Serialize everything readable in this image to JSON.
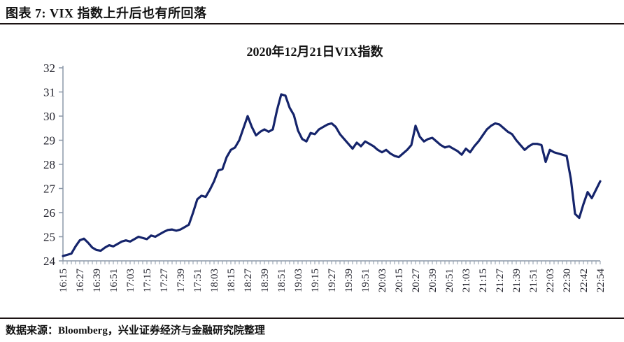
{
  "header": {
    "title": "图表 7: VIX 指数上升后也有所回落"
  },
  "footer": {
    "source": "数据来源：Bloomberg，兴业证券经济与金融研究院整理"
  },
  "chart_data": {
    "type": "line",
    "title": "2020年12月21日VIX指数",
    "xlabel": "",
    "ylabel": "",
    "ylim": [
      24,
      32
    ],
    "y_tick_step": 1,
    "grid": "off",
    "legend": "none",
    "line_color": "#15246B",
    "axis_color": "#8C98A8",
    "tick_label_color": "#22222C",
    "points_per_tick_interval": 4,
    "x_tick_labels": [
      "16:15",
      "16:27",
      "16:39",
      "16:51",
      "17:03",
      "17:15",
      "17:27",
      "17:39",
      "17:51",
      "18:03",
      "18:15",
      "18:27",
      "18:39",
      "18:51",
      "19:03",
      "19:15",
      "19:27",
      "19:39",
      "19:51",
      "20:03",
      "20:15",
      "20:27",
      "20:39",
      "20:51",
      "21:03",
      "21:15",
      "21:27",
      "21:39",
      "21:51",
      "22:03",
      "22:30",
      "22:42",
      "22:54"
    ],
    "values": [
      24.2,
      24.25,
      24.3,
      24.6,
      24.85,
      24.92,
      24.75,
      24.55,
      24.45,
      24.42,
      24.55,
      24.65,
      24.6,
      24.7,
      24.8,
      24.85,
      24.8,
      24.9,
      25.0,
      24.95,
      24.9,
      25.05,
      25.0,
      25.1,
      25.2,
      25.28,
      25.3,
      25.25,
      25.3,
      25.4,
      25.5,
      26.0,
      26.55,
      26.7,
      26.65,
      26.95,
      27.3,
      27.75,
      27.8,
      28.3,
      28.6,
      28.7,
      29.0,
      29.5,
      30.0,
      29.55,
      29.2,
      29.35,
      29.45,
      29.35,
      29.45,
      30.25,
      30.9,
      30.85,
      30.35,
      30.05,
      29.4,
      29.05,
      28.95,
      29.3,
      29.25,
      29.45,
      29.55,
      29.65,
      29.7,
      29.55,
      29.25,
      29.05,
      28.85,
      28.65,
      28.9,
      28.75,
      28.95,
      28.85,
      28.75,
      28.6,
      28.5,
      28.6,
      28.45,
      28.35,
      28.3,
      28.45,
      28.6,
      28.8,
      29.6,
      29.15,
      28.95,
      29.05,
      29.1,
      28.95,
      28.8,
      28.7,
      28.75,
      28.65,
      28.55,
      28.4,
      28.65,
      28.5,
      28.75,
      28.95,
      29.2,
      29.45,
      29.6,
      29.7,
      29.65,
      29.5,
      29.35,
      29.25,
      29.0,
      28.8,
      28.6,
      28.75,
      28.85,
      28.85,
      28.8,
      28.1,
      28.6,
      28.5,
      28.45,
      28.4,
      28.35,
      27.4,
      25.95,
      25.78,
      26.35,
      26.85,
      26.6,
      26.95,
      27.3
    ]
  }
}
